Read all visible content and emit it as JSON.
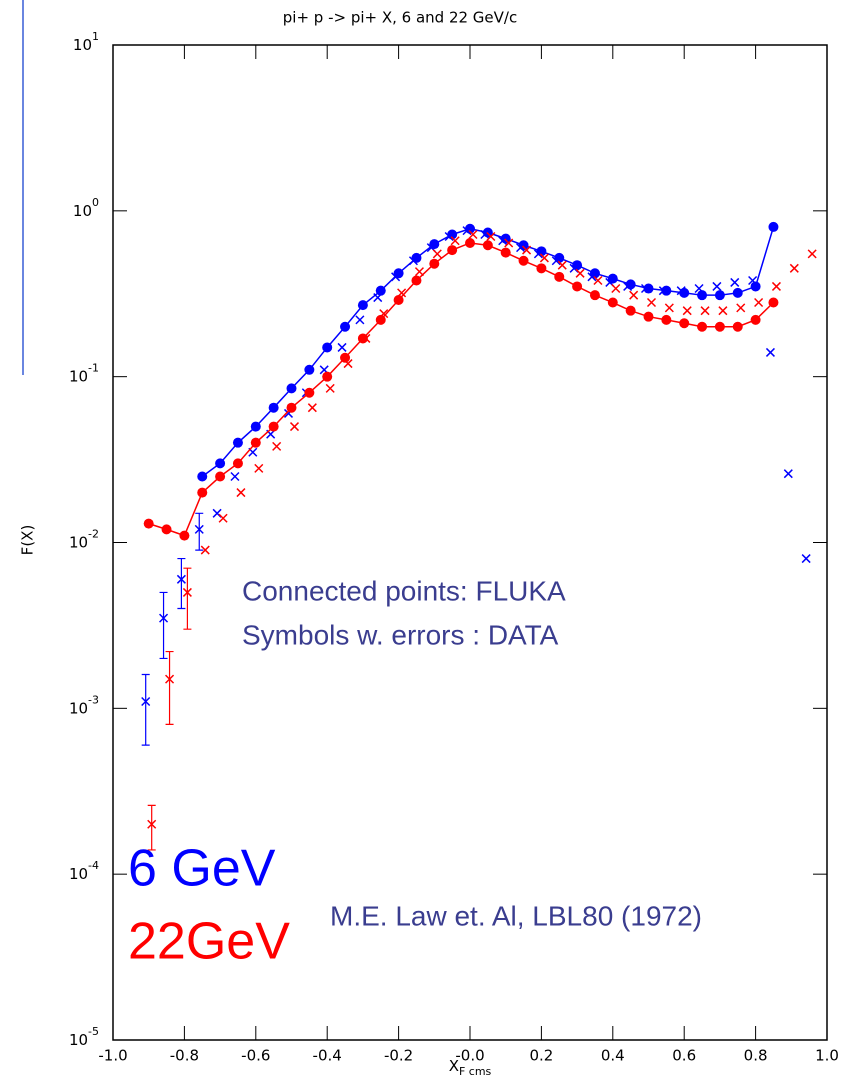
{
  "chart_data": {
    "type": "line",
    "title": "pi+ p -> pi+ X, 6 and 22 GeV/c",
    "x_label": "X",
    "x_label_sub": "F cms",
    "y_label": "F(X)",
    "log_y": true,
    "annotations": [
      "Connected points: FLUKA",
      "Symbols w. errors : DATA",
      "M.E. Law et. Al, LBL80 (1972)"
    ],
    "annotation_color": "#3a3d8f",
    "xlim": [
      -1,
      1
    ],
    "xticks": [
      {
        "value": -1,
        "label": "-1.0"
      },
      {
        "value": -0.8,
        "label": "-0.8"
      },
      {
        "value": -0.6,
        "label": "-0.6"
      },
      {
        "value": -0.4,
        "label": "-0.4"
      },
      {
        "value": -0.2,
        "label": "-0.2"
      },
      {
        "value": 0,
        "label": "-0.0"
      },
      {
        "value": 0.2,
        "label": "0.2"
      },
      {
        "value": 0.4,
        "label": "0.4"
      },
      {
        "value": 0.6,
        "label": "0.6"
      },
      {
        "value": 0.8,
        "label": "0.8"
      },
      {
        "value": 1,
        "label": "1.0"
      }
    ],
    "ylim": [
      1e-05,
      10
    ],
    "yticks": [
      {
        "value": 10,
        "label": "10",
        "exponent": "1"
      },
      {
        "value": 1,
        "label": "10",
        "exponent": "0"
      },
      {
        "value": 0.1,
        "label": "10",
        "exponent": "-1"
      },
      {
        "value": 0.01,
        "label": "10",
        "exponent": "-2"
      },
      {
        "value": 0.001,
        "label": "10",
        "exponent": "-3"
      },
      {
        "value": 0.0001,
        "label": "10",
        "exponent": "-4"
      },
      {
        "value": 1e-05,
        "label": "10",
        "exponent": "-5"
      }
    ],
    "x": [
      -0.9,
      -0.85,
      -0.8,
      -0.75,
      -0.7,
      -0.65,
      -0.6,
      -0.55,
      -0.5,
      -0.45,
      -0.4,
      -0.35,
      -0.3,
      -0.25,
      -0.2,
      -0.15,
      -0.1,
      -0.05,
      0,
      0.05,
      0.1,
      0.15,
      0.2,
      0.25,
      0.3,
      0.35,
      0.4,
      0.45,
      0.5,
      0.55,
      0.6,
      0.65,
      0.7,
      0.75,
      0.8,
      0.85,
      0.9,
      0.95
    ],
    "series": [
      {
        "name": "6 GeV",
        "color": "#0000ff",
        "values": [
          null,
          null,
          null,
          0.025,
          0.03,
          0.04,
          0.05,
          0.065,
          0.085,
          0.11,
          0.15,
          0.2,
          0.27,
          0.33,
          0.42,
          0.52,
          0.63,
          0.72,
          0.78,
          0.74,
          0.68,
          0.62,
          0.57,
          0.52,
          0.47,
          0.42,
          0.39,
          0.36,
          0.34,
          0.33,
          0.32,
          0.31,
          0.31,
          0.32,
          0.35,
          0.8,
          null,
          null
        ],
        "data": [
          0.0011,
          0.0035,
          0.006,
          0.012,
          0.015,
          0.025,
          0.035,
          0.045,
          0.06,
          0.08,
          0.11,
          0.15,
          0.22,
          0.3,
          0.4,
          0.5,
          0.6,
          0.7,
          0.76,
          0.72,
          0.66,
          0.6,
          0.55,
          0.5,
          0.45,
          0.4,
          0.37,
          0.35,
          0.34,
          0.33,
          0.33,
          0.34,
          0.35,
          0.37,
          0.38,
          0.14,
          0.026,
          0.008
        ],
        "errors": [
          0.0005,
          0.0015,
          0.002,
          0.003,
          null,
          null,
          null,
          null,
          null,
          null,
          null,
          null,
          null,
          null,
          null,
          null,
          null,
          null,
          null,
          null,
          null,
          null,
          null,
          null,
          null,
          null,
          null,
          null,
          null,
          null,
          null,
          null,
          null,
          null,
          null,
          null,
          null,
          null
        ]
      },
      {
        "name": "22GeV",
        "color": "#ff0000",
        "values": [
          0.013,
          0.012,
          0.011,
          0.02,
          0.025,
          0.03,
          0.04,
          0.05,
          0.065,
          0.08,
          0.1,
          0.13,
          0.17,
          0.22,
          0.29,
          0.38,
          0.48,
          0.58,
          0.64,
          0.62,
          0.56,
          0.5,
          0.45,
          0.4,
          0.35,
          0.31,
          0.28,
          0.25,
          0.23,
          0.22,
          0.21,
          0.2,
          0.2,
          0.2,
          0.22,
          0.28,
          null,
          null
        ],
        "data": [
          0.0002,
          0.0015,
          0.005,
          0.009,
          0.014,
          0.02,
          0.028,
          0.038,
          0.05,
          0.065,
          0.085,
          0.12,
          0.17,
          0.24,
          0.32,
          0.43,
          0.55,
          0.66,
          0.72,
          0.7,
          0.64,
          0.58,
          0.52,
          0.47,
          0.42,
          0.38,
          0.34,
          0.31,
          0.28,
          0.26,
          0.25,
          0.25,
          0.25,
          0.26,
          0.28,
          0.35,
          0.45,
          0.55
        ],
        "errors": [
          6e-05,
          0.0007,
          0.002,
          null,
          null,
          null,
          null,
          null,
          null,
          null,
          null,
          null,
          null,
          null,
          null,
          null,
          null,
          null,
          null,
          null,
          null,
          null,
          null,
          null,
          null,
          null,
          null,
          null,
          null,
          null,
          null,
          null,
          null,
          null,
          null,
          null,
          null,
          null
        ]
      }
    ]
  }
}
